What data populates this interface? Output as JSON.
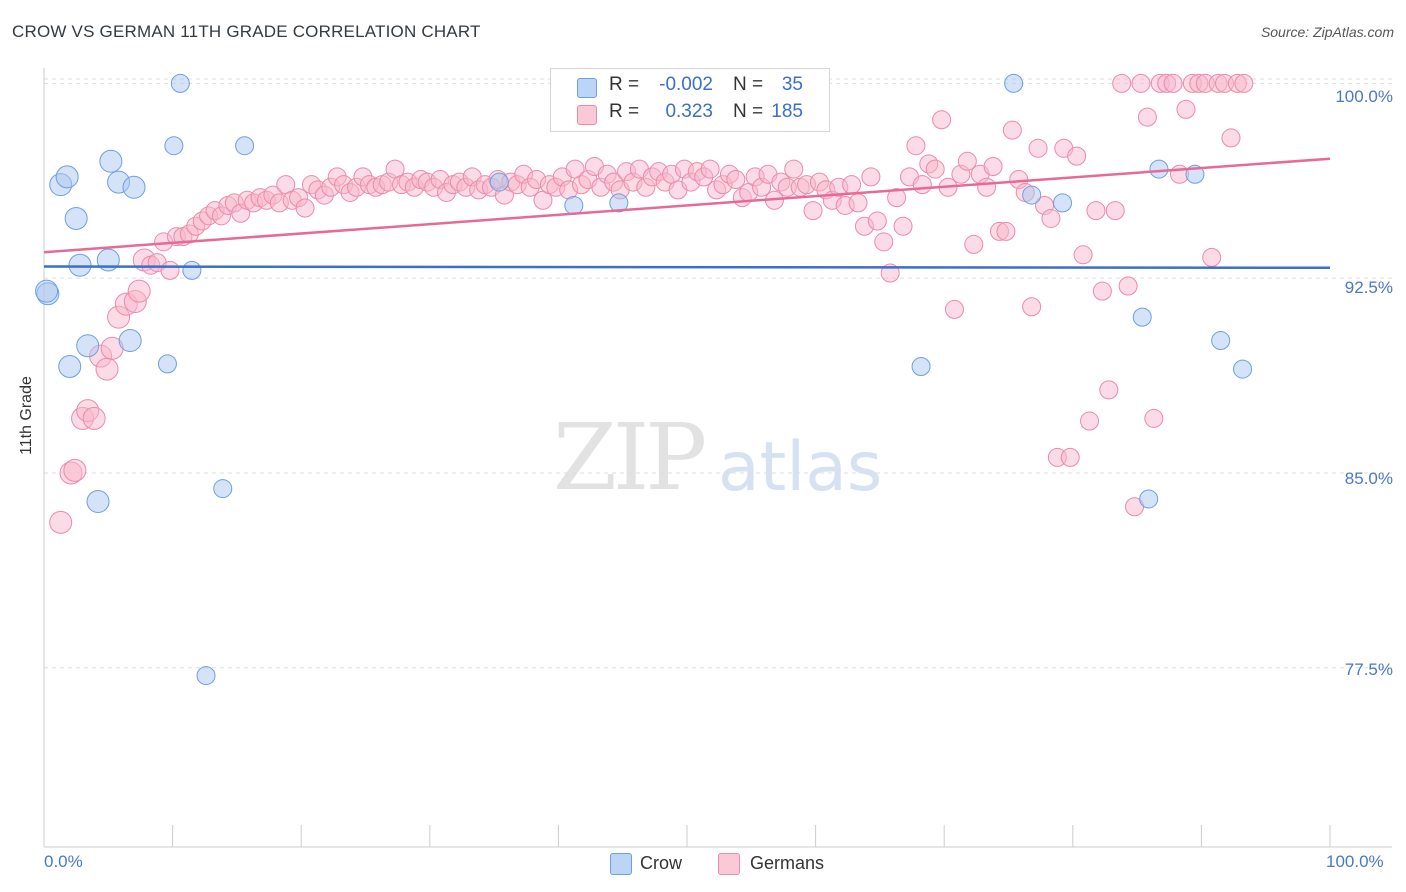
{
  "title": "CROW VS GERMAN 11TH GRADE CORRELATION CHART",
  "source": "Source: ZipAtlas.com",
  "watermark": {
    "zip": "ZIP",
    "atlas": "atlas"
  },
  "legend": {
    "rows": [
      {
        "r_label": "R =",
        "r_value": "-0.002",
        "n_label": "N =",
        "n_value": "35"
      },
      {
        "r_label": "R =",
        "r_value": "0.323",
        "n_label": "N =",
        "n_value": "185"
      }
    ]
  },
  "bottom_legend": [
    "Crow",
    "Germans"
  ],
  "colors": {
    "crow_fill": "#a9c7f0",
    "crow_stroke": "#6f9fe0",
    "crow_line": "#3a6fcc",
    "german_fill": "#f7b7cb",
    "german_stroke": "#ec8aaa",
    "german_line": "#e76a95",
    "grid": "#dddddd",
    "axis_text": "#4a78c8"
  },
  "chart_data": {
    "type": "scatter",
    "title": "CROW VS GERMAN 11TH GRADE CORRELATION CHART",
    "xlabel": "",
    "ylabel": "11th Grade",
    "xlim": [
      0,
      100
    ],
    "ylim": [
      70.6,
      100.9
    ],
    "x_tick_labels": [
      "0.0%",
      "100.0%"
    ],
    "y_ticks": [
      100.0,
      92.5,
      85.0,
      77.5
    ],
    "y_tick_labels": [
      "100.0%",
      "92.5%",
      "85.0%",
      "77.5%"
    ],
    "grid": true,
    "legend_position": "top-center",
    "series": [
      {
        "name": "Crow",
        "R": -0.002,
        "N": 35,
        "trend": [
          [
            0,
            92.95
          ],
          [
            100,
            92.9
          ]
        ],
        "points": [
          [
            0.3,
            91.9
          ],
          [
            1.3,
            96.1
          ],
          [
            1.8,
            96.4
          ],
          [
            2.0,
            89.1
          ],
          [
            2.5,
            94.8
          ],
          [
            2.8,
            93.0
          ],
          [
            3.4,
            89.9
          ],
          [
            4.2,
            83.9
          ],
          [
            5.0,
            93.2
          ],
          [
            5.2,
            97.0
          ],
          [
            5.8,
            96.2
          ],
          [
            6.7,
            90.1
          ],
          [
            7.0,
            96.0
          ],
          [
            9.6,
            89.2
          ],
          [
            10.1,
            97.6
          ],
          [
            10.6,
            100.0
          ],
          [
            11.5,
            92.8
          ],
          [
            12.6,
            77.2
          ],
          [
            13.9,
            84.4
          ],
          [
            15.6,
            97.6
          ],
          [
            35.4,
            96.2
          ],
          [
            41.2,
            95.3
          ],
          [
            44.7,
            95.4
          ],
          [
            58.1,
            100.0
          ],
          [
            75.4,
            100.0
          ],
          [
            68.2,
            89.1
          ],
          [
            76.8,
            95.7
          ],
          [
            79.2,
            95.4
          ],
          [
            85.4,
            91.0
          ],
          [
            85.9,
            84.0
          ],
          [
            86.7,
            96.7
          ],
          [
            89.5,
            96.5
          ],
          [
            91.5,
            90.1
          ],
          [
            93.2,
            89.0
          ],
          [
            0.2,
            92.0
          ]
        ]
      },
      {
        "name": "Germans",
        "R": 0.323,
        "N": 185,
        "trend": [
          [
            0,
            93.5
          ],
          [
            100,
            97.1
          ]
        ],
        "points": [
          [
            1.3,
            83.1
          ],
          [
            2.1,
            85.0
          ],
          [
            2.4,
            85.1
          ],
          [
            3.0,
            87.1
          ],
          [
            3.4,
            87.4
          ],
          [
            3.9,
            87.1
          ],
          [
            4.4,
            89.5
          ],
          [
            4.9,
            89.0
          ],
          [
            5.3,
            89.8
          ],
          [
            5.8,
            91.0
          ],
          [
            6.4,
            91.5
          ],
          [
            7.1,
            91.6
          ],
          [
            7.4,
            92.0
          ],
          [
            7.8,
            93.2
          ],
          [
            8.3,
            93.0
          ],
          [
            8.8,
            93.1
          ],
          [
            9.3,
            93.9
          ],
          [
            9.8,
            92.8
          ],
          [
            10.3,
            94.1
          ],
          [
            10.8,
            94.1
          ],
          [
            11.3,
            94.2
          ],
          [
            11.8,
            94.5
          ],
          [
            12.3,
            94.7
          ],
          [
            12.8,
            94.9
          ],
          [
            13.3,
            95.1
          ],
          [
            13.8,
            94.9
          ],
          [
            14.3,
            95.3
          ],
          [
            14.8,
            95.4
          ],
          [
            15.3,
            95.0
          ],
          [
            15.8,
            95.5
          ],
          [
            16.3,
            95.4
          ],
          [
            16.8,
            95.6
          ],
          [
            17.3,
            95.5
          ],
          [
            17.8,
            95.7
          ],
          [
            18.3,
            95.4
          ],
          [
            18.8,
            96.1
          ],
          [
            19.3,
            95.5
          ],
          [
            19.8,
            95.6
          ],
          [
            20.3,
            95.2
          ],
          [
            20.8,
            96.1
          ],
          [
            21.3,
            95.9
          ],
          [
            21.8,
            95.7
          ],
          [
            22.3,
            96.0
          ],
          [
            22.8,
            96.4
          ],
          [
            23.3,
            96.1
          ],
          [
            23.8,
            95.8
          ],
          [
            24.3,
            96.0
          ],
          [
            24.8,
            96.4
          ],
          [
            25.3,
            96.1
          ],
          [
            25.8,
            96.0
          ],
          [
            26.3,
            96.1
          ],
          [
            26.8,
            96.2
          ],
          [
            27.3,
            96.7
          ],
          [
            27.8,
            96.1
          ],
          [
            28.3,
            96.2
          ],
          [
            28.8,
            96.0
          ],
          [
            29.3,
            96.3
          ],
          [
            29.8,
            96.2
          ],
          [
            30.3,
            96.0
          ],
          [
            30.8,
            96.3
          ],
          [
            31.3,
            95.8
          ],
          [
            31.8,
            96.1
          ],
          [
            32.3,
            96.2
          ],
          [
            32.8,
            96.0
          ],
          [
            33.3,
            96.4
          ],
          [
            33.8,
            95.9
          ],
          [
            34.3,
            96.1
          ],
          [
            34.8,
            96.0
          ],
          [
            35.3,
            96.3
          ],
          [
            35.8,
            95.7
          ],
          [
            36.3,
            96.2
          ],
          [
            36.8,
            96.1
          ],
          [
            37.3,
            96.5
          ],
          [
            37.8,
            96.0
          ],
          [
            38.3,
            96.3
          ],
          [
            38.8,
            95.5
          ],
          [
            39.3,
            96.1
          ],
          [
            39.8,
            96.0
          ],
          [
            40.3,
            96.4
          ],
          [
            40.8,
            95.9
          ],
          [
            41.3,
            96.7
          ],
          [
            41.8,
            96.1
          ],
          [
            42.3,
            96.3
          ],
          [
            42.8,
            96.8
          ],
          [
            43.3,
            96.0
          ],
          [
            43.8,
            96.5
          ],
          [
            44.3,
            96.2
          ],
          [
            44.8,
            95.9
          ],
          [
            45.3,
            96.6
          ],
          [
            45.8,
            96.2
          ],
          [
            46.3,
            96.7
          ],
          [
            46.8,
            96.0
          ],
          [
            47.3,
            96.4
          ],
          [
            47.8,
            96.6
          ],
          [
            48.3,
            96.2
          ],
          [
            48.8,
            96.5
          ],
          [
            49.3,
            95.9
          ],
          [
            49.8,
            96.7
          ],
          [
            50.3,
            96.2
          ],
          [
            50.8,
            96.6
          ],
          [
            51.3,
            96.4
          ],
          [
            51.8,
            96.7
          ],
          [
            52.3,
            95.9
          ],
          [
            52.8,
            96.1
          ],
          [
            53.3,
            96.5
          ],
          [
            53.8,
            96.3
          ],
          [
            54.3,
            95.6
          ],
          [
            54.8,
            95.8
          ],
          [
            55.3,
            96.4
          ],
          [
            55.8,
            96.0
          ],
          [
            56.3,
            96.5
          ],
          [
            56.8,
            95.5
          ],
          [
            57.3,
            96.2
          ],
          [
            57.8,
            96.0
          ],
          [
            58.3,
            96.7
          ],
          [
            58.8,
            96.0
          ],
          [
            59.3,
            96.1
          ],
          [
            59.8,
            95.1
          ],
          [
            60.3,
            96.2
          ],
          [
            60.8,
            95.9
          ],
          [
            61.3,
            95.5
          ],
          [
            61.8,
            96.0
          ],
          [
            62.3,
            95.3
          ],
          [
            62.8,
            96.1
          ],
          [
            63.3,
            95.4
          ],
          [
            63.8,
            94.5
          ],
          [
            64.3,
            96.4
          ],
          [
            64.8,
            94.7
          ],
          [
            65.3,
            93.9
          ],
          [
            65.8,
            92.7
          ],
          [
            66.3,
            95.6
          ],
          [
            66.8,
            94.5
          ],
          [
            67.3,
            96.4
          ],
          [
            67.8,
            97.6
          ],
          [
            68.3,
            96.1
          ],
          [
            68.8,
            96.9
          ],
          [
            69.3,
            96.7
          ],
          [
            69.8,
            98.6
          ],
          [
            70.3,
            96.0
          ],
          [
            70.8,
            91.3
          ],
          [
            71.3,
            96.5
          ],
          [
            71.8,
            97.0
          ],
          [
            72.3,
            93.8
          ],
          [
            72.8,
            96.5
          ],
          [
            73.3,
            96.0
          ],
          [
            73.8,
            96.8
          ],
          [
            74.3,
            94.3
          ],
          [
            74.8,
            94.3
          ],
          [
            75.3,
            98.2
          ],
          [
            75.8,
            96.3
          ],
          [
            76.3,
            95.8
          ],
          [
            76.8,
            91.4
          ],
          [
            77.3,
            97.5
          ],
          [
            77.8,
            95.3
          ],
          [
            78.3,
            94.8
          ],
          [
            78.8,
            85.6
          ],
          [
            79.3,
            97.5
          ],
          [
            79.8,
            85.6
          ],
          [
            80.3,
            97.2
          ],
          [
            80.8,
            93.4
          ],
          [
            81.3,
            87.0
          ],
          [
            81.8,
            95.1
          ],
          [
            82.3,
            92.0
          ],
          [
            82.8,
            88.2
          ],
          [
            83.3,
            95.1
          ],
          [
            83.8,
            100.0
          ],
          [
            84.3,
            92.2
          ],
          [
            84.8,
            83.7
          ],
          [
            85.3,
            100.0
          ],
          [
            85.8,
            98.7
          ],
          [
            86.3,
            87.1
          ],
          [
            86.8,
            100.0
          ],
          [
            87.3,
            100.0
          ],
          [
            87.8,
            100.0
          ],
          [
            88.3,
            96.5
          ],
          [
            88.8,
            99.0
          ],
          [
            89.3,
            100.0
          ],
          [
            89.8,
            100.0
          ],
          [
            90.3,
            100.0
          ],
          [
            90.8,
            93.3
          ],
          [
            91.3,
            100.0
          ],
          [
            91.8,
            100.0
          ],
          [
            92.3,
            97.9
          ],
          [
            92.8,
            100.0
          ],
          [
            93.3,
            100.0
          ]
        ]
      }
    ]
  }
}
